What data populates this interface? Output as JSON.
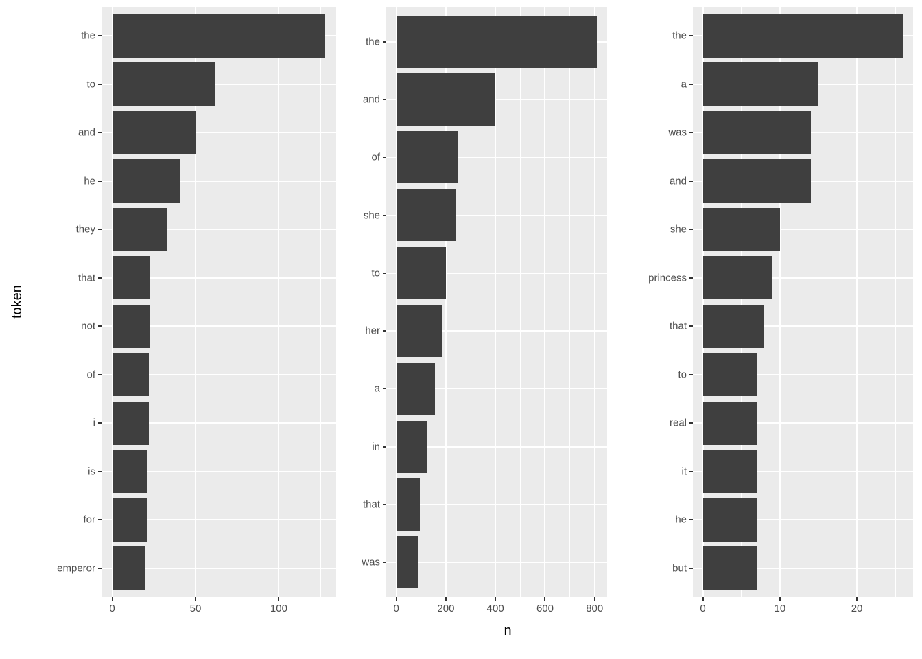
{
  "figure": {
    "xlabel": "n",
    "ylabel": "token",
    "background_color": "#FFFFFF",
    "panel_background_color": "#EBEBEB",
    "grid_color": "#FFFFFF",
    "bar_color": "#3F3F3F",
    "tick_label_color": "#4D4D4D",
    "axis_title_color": "#000000"
  },
  "chart_data": [
    {
      "type": "bar",
      "orientation": "horizontal",
      "title": "",
      "xlabel": "n",
      "ylabel": "token",
      "categories": [
        "the",
        "to",
        "and",
        "he",
        "they",
        "that",
        "not",
        "of",
        "i",
        "is",
        "for",
        "emperor"
      ],
      "values": [
        128,
        62,
        50,
        41,
        33,
        23,
        23,
        22,
        22,
        21,
        21,
        20
      ],
      "xticks": [
        0,
        50,
        100
      ],
      "xlim": [
        -6.4,
        134.4
      ],
      "grid": true,
      "legend": false
    },
    {
      "type": "bar",
      "orientation": "horizontal",
      "title": "",
      "xlabel": "n",
      "ylabel": "token",
      "categories": [
        "the",
        "and",
        "of",
        "she",
        "to",
        "her",
        "a",
        "in",
        "that",
        "was"
      ],
      "values": [
        810,
        400,
        250,
        240,
        200,
        185,
        155,
        125,
        95,
        90
      ],
      "xticks": [
        0,
        200,
        400,
        600,
        800
      ],
      "xlim": [
        -40.5,
        850.5
      ],
      "grid": true,
      "legend": false
    },
    {
      "type": "bar",
      "orientation": "horizontal",
      "title": "",
      "xlabel": "n",
      "ylabel": "token",
      "categories": [
        "the",
        "a",
        "was",
        "and",
        "she",
        "princess",
        "that",
        "to",
        "real",
        "it",
        "he",
        "but"
      ],
      "values": [
        26,
        15,
        14,
        14,
        10,
        9,
        8,
        7,
        7,
        7,
        7,
        7
      ],
      "xticks": [
        0,
        10,
        20
      ],
      "xlim": [
        -1.3,
        27.3
      ],
      "grid": true,
      "legend": false
    }
  ]
}
